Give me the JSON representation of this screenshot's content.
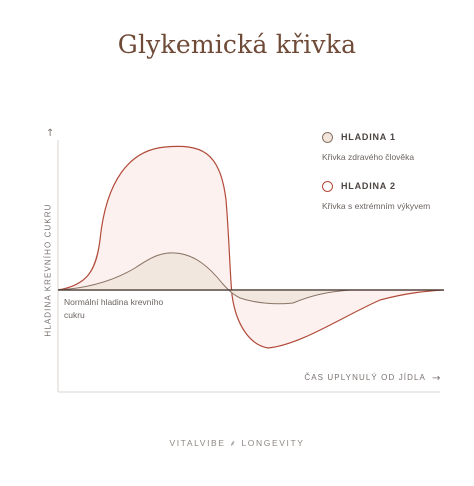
{
  "title": "Glykemická křivka",
  "axes": {
    "y_label": "HLADINA KREVNÍHO CUKRU",
    "x_label": "ČAS UPLYNULÝ OD JÍDLA",
    "arrow_up": "↑",
    "arrow_right": "→"
  },
  "baseline_label": "Normální hladina krevního cukru",
  "legend": [
    {
      "title": "HLADINA 1",
      "description": "Křivka zdravého člověka",
      "fill": "#f1e5dc",
      "stroke": "#8a7466"
    },
    {
      "title": "HLADINA 2",
      "description": "Křivka s extrémním výkyvem",
      "fill": "#fdf1ef",
      "stroke": "#b24a3a"
    }
  ],
  "footer": "VITALVIBE ⸙ LONGEVITY",
  "colors": {
    "title": "#6e4a37",
    "axis": "#d9d3cf",
    "baseline": "#3e3833",
    "healthy_fill": "#f1e5dc",
    "healthy_stroke": "#8a7466",
    "extreme_fill": "#fdf1ef",
    "extreme_stroke": "#b24a3a"
  }
}
